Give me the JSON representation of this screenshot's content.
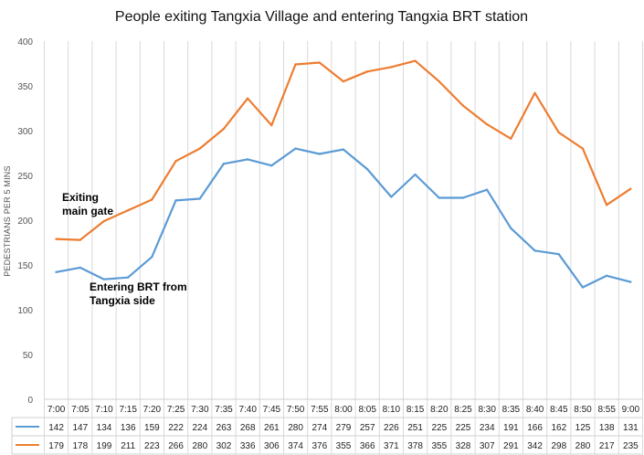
{
  "chart_data": {
    "type": "line",
    "title": "People exiting Tangxia Village and entering Tangxia BRT station",
    "ylabel": "PEDESTRIANS PER 5 MINS",
    "xlabel": "",
    "ylim": [
      0,
      400
    ],
    "yticks": [
      0,
      50,
      100,
      150,
      200,
      250,
      300,
      350,
      400
    ],
    "grid": "vertical",
    "legend": "data table below chart",
    "categories": [
      "7:00",
      "7:05",
      "7:10",
      "7:15",
      "7:20",
      "7:25",
      "7:30",
      "7:35",
      "7:40",
      "7:45",
      "7:50",
      "7:55",
      "8:00",
      "8:05",
      "8:10",
      "8:15",
      "8:20",
      "8:25",
      "8:30",
      "8:35",
      "8:40",
      "8:45",
      "8:50",
      "8:55",
      "9:00"
    ],
    "series": [
      {
        "color": "#5b9bd5",
        "values": [
          142,
          147,
          134,
          136,
          159,
          222,
          224,
          263,
          268,
          261,
          280,
          274,
          279,
          257,
          226,
          251,
          225,
          225,
          234,
          191,
          166,
          162,
          125,
          138,
          131
        ]
      },
      {
        "color": "#ed7d31",
        "values": [
          179,
          178,
          199,
          211,
          223,
          266,
          280,
          302,
          336,
          306,
          374,
          376,
          355,
          366,
          371,
          378,
          355,
          328,
          307,
          291,
          342,
          298,
          280,
          217,
          235
        ]
      }
    ],
    "annotations": [
      {
        "lines": [
          "Exiting",
          "main gate"
        ],
        "near_series": 1
      },
      {
        "lines": [
          "Entering BRT from",
          "Tangxia side"
        ],
        "near_series": 0
      }
    ]
  }
}
